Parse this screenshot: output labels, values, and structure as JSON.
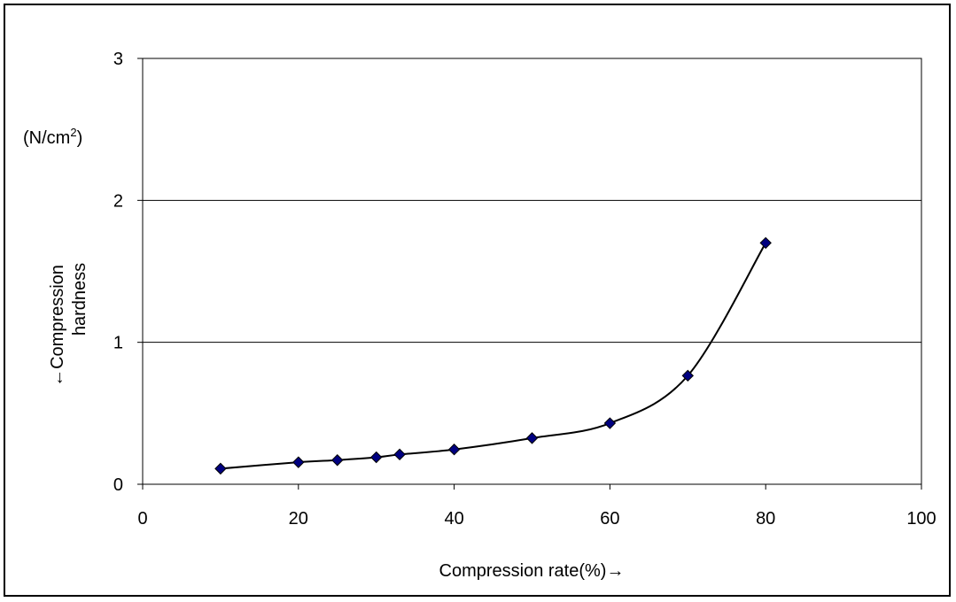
{
  "chart_data": {
    "type": "line",
    "title": "",
    "xlabel": "Compression rate(%)→",
    "ylabel_line1": "←Compression",
    "ylabel_line2": "hardness",
    "unit_label_prefix": "(N/cm",
    "unit_label_sup": "2",
    "unit_label_suffix": ")",
    "xlim": [
      0,
      100
    ],
    "ylim": [
      0,
      3
    ],
    "xticks": [
      0,
      20,
      40,
      60,
      80,
      100
    ],
    "yticks": [
      0,
      1,
      2,
      3
    ],
    "grid": "horizontal",
    "legend": "none",
    "series": [
      {
        "x": [
          10,
          20,
          25,
          30,
          33,
          40,
          50,
          60,
          70,
          80
        ],
        "y": [
          0.11,
          0.155,
          0.17,
          0.19,
          0.21,
          0.245,
          0.325,
          0.43,
          0.765,
          1.7
        ]
      }
    ],
    "marker_color": "#000080",
    "line_color": "#000000"
  }
}
